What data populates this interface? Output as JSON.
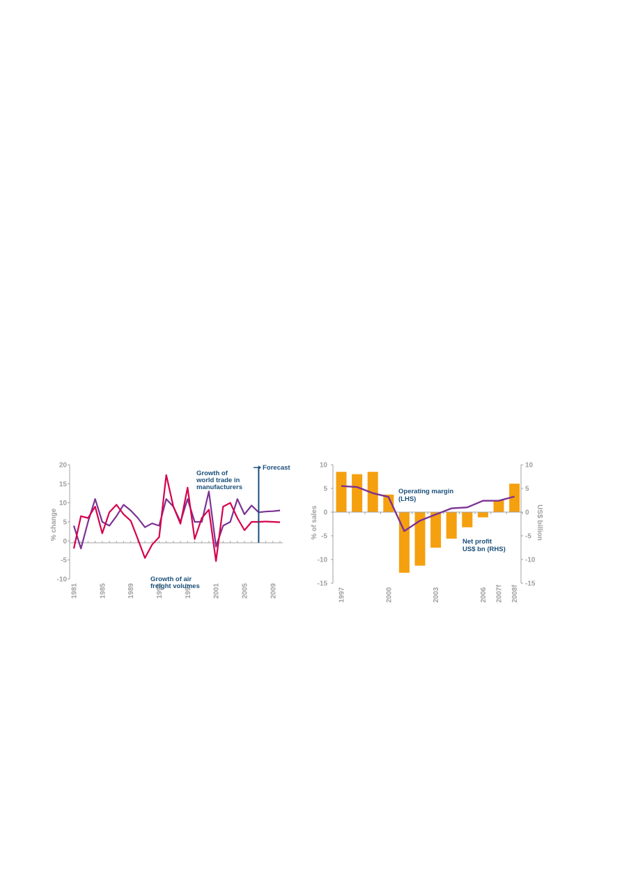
{
  "chart_data": [
    {
      "type": "line",
      "ylabel": "% change",
      "ylim": [
        -10,
        20
      ],
      "yticks": [
        -10,
        -5,
        0,
        5,
        10,
        15,
        20
      ],
      "xlim": [
        1981,
        2010
      ],
      "xtick_labels": [
        "1981",
        "1985",
        "1989",
        "1993",
        "1997",
        "2001",
        "2005",
        "2009"
      ],
      "forecast_label": "Forecast",
      "forecast_start": 2007,
      "x": [
        1981,
        1982,
        1983,
        1984,
        1985,
        1986,
        1987,
        1988,
        1989,
        1990,
        1991,
        1992,
        1993,
        1994,
        1995,
        1996,
        1997,
        1998,
        1999,
        2000,
        2001,
        2002,
        2003,
        2004,
        2005,
        2006,
        2007,
        2008,
        2009,
        2010
      ],
      "series": [
        {
          "name": "Growth of world trade in manufacturers",
          "name_lines": [
            "Growth of",
            "world trade in",
            "manufacturers"
          ],
          "color": "#7b3294",
          "values": [
            4,
            -2,
            5,
            11,
            5,
            4,
            6.5,
            9.5,
            8,
            6,
            3.6,
            4.6,
            4,
            11,
            9,
            5,
            11,
            5,
            5,
            13,
            -1.5,
            4,
            5,
            11,
            7,
            9.3,
            7.5,
            7.7,
            7.8,
            8
          ]
        },
        {
          "name": "Growth of air freight volumes",
          "name_lines": [
            "Growth of air",
            "freight volumes"
          ],
          "color": "#d6004c",
          "values": [
            -2,
            6.5,
            6,
            9,
            2,
            7.5,
            9.5,
            7,
            5.3,
            0.5,
            -4.5,
            -1,
            1,
            17.3,
            9,
            4.5,
            14,
            0.5,
            6,
            8.2,
            -5.3,
            9,
            10,
            6,
            2.8,
            5,
            5,
            5.1,
            5,
            4.9
          ]
        }
      ]
    },
    {
      "type": "bar+line",
      "ylabel": "% of sales",
      "y2label": "US$ billion",
      "ylim": [
        -15,
        10
      ],
      "yticks": [
        -15,
        -10,
        -5,
        0,
        5,
        10
      ],
      "y2ticks": [
        -15,
        -10,
        -5,
        0,
        5,
        10
      ],
      "categories": [
        "1997",
        "1998",
        "1999",
        "2000",
        "2001",
        "2002",
        "2003",
        "2004",
        "2005",
        "2006",
        "2007f",
        "2008f"
      ],
      "xtick_labels": [
        "1997",
        "2000",
        "2003",
        "2006",
        "2007f",
        "2008f"
      ],
      "xtick_indices": [
        0,
        3,
        6,
        9,
        10,
        11
      ],
      "bar_series": {
        "name": "Net profit US$ bn (RHS)",
        "name_lines": [
          "Net profit",
          "US$ bn (RHS)"
        ],
        "color": "#f5a00f",
        "values": [
          8.5,
          8,
          8.5,
          3.7,
          -12.8,
          -11.3,
          -7.5,
          -5.6,
          -3.2,
          -1.1,
          2.5,
          6
        ]
      },
      "line_series": {
        "name": "Operating margin (LHS)",
        "name_lines": [
          "Operating margin",
          "(LHS)"
        ],
        "color": "#7b3294",
        "values": [
          5.5,
          5.3,
          4,
          3.2,
          -4,
          -1.8,
          -0.5,
          0.8,
          1,
          2.4,
          2.4,
          3.3
        ]
      }
    }
  ]
}
